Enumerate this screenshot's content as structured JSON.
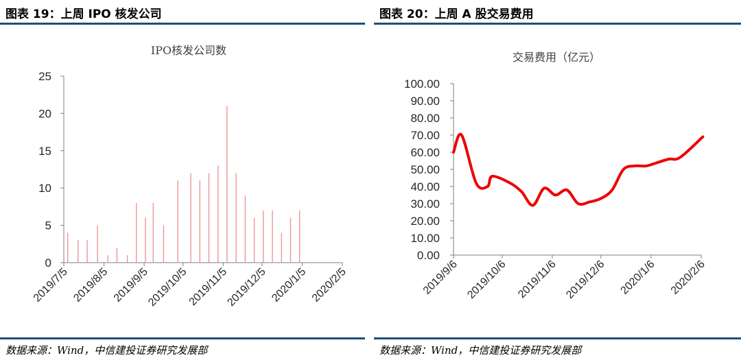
{
  "panels": {
    "left": {
      "figure_title": "图表 19：上周 IPO 核发公司",
      "source": "数据来源：Wind，中信建投证券研究发展部"
    },
    "right": {
      "figure_title": "图表 20：上周 A 股交易费用",
      "source": "数据来源：Wind，中信建投证券研究发展部"
    }
  },
  "colors": {
    "rule": "#1f4e79",
    "bar": "#ee8d8d",
    "line": "#ee0000",
    "axis": "#7f7f7f"
  },
  "chart_data": [
    {
      "type": "bar",
      "title": "IPO核发公司数",
      "xlabel": "",
      "ylabel": "",
      "ylim": [
        0,
        25
      ],
      "yticks": [
        "0",
        "5",
        "10",
        "15",
        "20",
        "25"
      ],
      "xticks": [
        "2019/7/5",
        "2019/8/5",
        "2019/9/5",
        "2019/10/5",
        "2019/11/5",
        "2019/12/5",
        "2020/1/5",
        "2020/2/5"
      ],
      "x_range": [
        "2019/7/5",
        "2020/2/5"
      ],
      "grid": false,
      "points": [
        {
          "date": "2019/7/8",
          "value": 4
        },
        {
          "date": "2019/7/16",
          "value": 3
        },
        {
          "date": "2019/7/23",
          "value": 3
        },
        {
          "date": "2019/7/31",
          "value": 5
        },
        {
          "date": "2019/8/8",
          "value": 1
        },
        {
          "date": "2019/8/15",
          "value": 2
        },
        {
          "date": "2019/8/23",
          "value": 1
        },
        {
          "date": "2019/8/30",
          "value": 8
        },
        {
          "date": "2019/9/6",
          "value": 6
        },
        {
          "date": "2019/9/12",
          "value": 8
        },
        {
          "date": "2019/9/20",
          "value": 5
        },
        {
          "date": "2019/10/1",
          "value": 11
        },
        {
          "date": "2019/10/11",
          "value": 12
        },
        {
          "date": "2019/10/18",
          "value": 11
        },
        {
          "date": "2019/10/25",
          "value": 12
        },
        {
          "date": "2019/11/1",
          "value": 13
        },
        {
          "date": "2019/11/8",
          "value": 21
        },
        {
          "date": "2019/11/15",
          "value": 12
        },
        {
          "date": "2019/11/22",
          "value": 9
        },
        {
          "date": "2019/11/29",
          "value": 6
        },
        {
          "date": "2019/12/6",
          "value": 7
        },
        {
          "date": "2019/12/13",
          "value": 7
        },
        {
          "date": "2019/12/20",
          "value": 4
        },
        {
          "date": "2019/12/27",
          "value": 6
        },
        {
          "date": "2020/1/3",
          "value": 7
        }
      ]
    },
    {
      "type": "line",
      "title": "交易费用（亿元）",
      "xlabel": "",
      "ylabel": "",
      "ylim": [
        0,
        100
      ],
      "yticks": [
        "0.00",
        "10.00",
        "20.00",
        "30.00",
        "40.00",
        "50.00",
        "60.00",
        "70.00",
        "80.00",
        "90.00",
        "100.00"
      ],
      "xticks": [
        "2019/9/6",
        "2019/10/6",
        "2019/11/6",
        "2019/12/6",
        "2020/1/6",
        "2020/2/6"
      ],
      "x_range": [
        "2019/9/6",
        "2020/2/6"
      ],
      "grid": false,
      "points": [
        {
          "date": "2019/9/6",
          "value": 60
        },
        {
          "date": "2019/9/11",
          "value": 70
        },
        {
          "date": "2019/9/20",
          "value": 42
        },
        {
          "date": "2019/9/27",
          "value": 40
        },
        {
          "date": "2019/9/30",
          "value": 46
        },
        {
          "date": "2019/10/11",
          "value": 42
        },
        {
          "date": "2019/10/18",
          "value": 37
        },
        {
          "date": "2019/10/25",
          "value": 29
        },
        {
          "date": "2019/11/1",
          "value": 39
        },
        {
          "date": "2019/11/8",
          "value": 35
        },
        {
          "date": "2019/11/15",
          "value": 38
        },
        {
          "date": "2019/11/22",
          "value": 30
        },
        {
          "date": "2019/11/29",
          "value": 31
        },
        {
          "date": "2019/12/6",
          "value": 33
        },
        {
          "date": "2019/12/13",
          "value": 38
        },
        {
          "date": "2019/12/20",
          "value": 50
        },
        {
          "date": "2019/12/27",
          "value": 52
        },
        {
          "date": "2020/1/3",
          "value": 52
        },
        {
          "date": "2020/1/10",
          "value": 54
        },
        {
          "date": "2020/1/17",
          "value": 56
        },
        {
          "date": "2020/1/24",
          "value": 57
        },
        {
          "date": "2020/2/7",
          "value": 69
        }
      ]
    }
  ]
}
